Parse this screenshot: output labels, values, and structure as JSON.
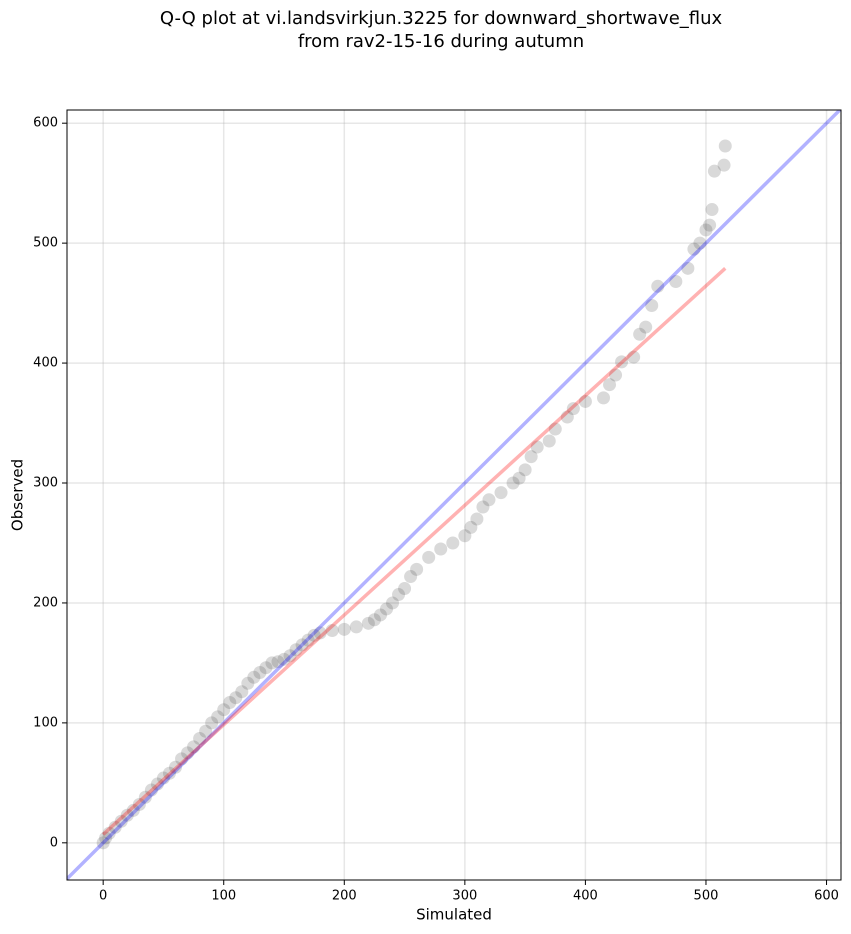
{
  "chart_data": {
    "type": "scatter",
    "title": [
      "Q-Q plot at vi.landsvirkjun.3225 for downward_shortwave_flux",
      "from rav2-15-16 during autumn"
    ],
    "x_label": "Simulated",
    "y_label": "Observed",
    "xlim": [
      -30,
      612
    ],
    "ylim": [
      -31,
      611
    ],
    "xticks": [
      0,
      100,
      200,
      300,
      400,
      500,
      600
    ],
    "yticks": [
      0,
      100,
      200,
      300,
      400,
      500,
      600
    ],
    "grid": true,
    "series": [
      {
        "color": "#404040",
        "alpha": 0.2,
        "x": [
          0,
          2,
          5,
          10,
          15,
          20,
          25,
          30,
          35,
          40,
          45,
          50,
          55,
          60,
          65,
          70,
          75,
          80,
          85,
          90,
          95,
          100,
          105,
          110,
          115,
          120,
          125,
          130,
          135,
          140,
          145,
          150,
          155,
          160,
          165,
          170,
          175,
          180,
          190,
          200,
          210,
          220,
          225,
          230,
          235,
          240,
          245,
          250,
          255,
          260,
          270,
          280,
          290,
          300,
          305,
          310,
          315,
          320,
          330,
          340,
          345,
          350,
          355,
          360,
          370,
          375,
          385,
          390,
          400,
          415,
          420,
          425,
          430,
          440,
          445,
          450,
          455,
          460,
          475,
          485,
          490,
          495,
          500,
          503,
          505,
          507,
          515,
          516
        ],
        "values": [
          0,
          4,
          8,
          13,
          18,
          23,
          27,
          32,
          38,
          44,
          49,
          54,
          58,
          63,
          70,
          75,
          80,
          87,
          93,
          100,
          105,
          111,
          117,
          121,
          126,
          133,
          138,
          142,
          146,
          150,
          151,
          153,
          156,
          161,
          165,
          169,
          173,
          175,
          177,
          178,
          180,
          183,
          186,
          190,
          195,
          200,
          207,
          212,
          222,
          228,
          238,
          245,
          250,
          256,
          263,
          270,
          280,
          286,
          292,
          300,
          304,
          311,
          322,
          330,
          335,
          345,
          355,
          362,
          368,
          371,
          382,
          390,
          401,
          405,
          424,
          430,
          448,
          464,
          468,
          479,
          495,
          500,
          511,
          515,
          528,
          560,
          565,
          581
        ]
      }
    ],
    "lines": [
      {
        "color": "#0000ff",
        "alpha": 0.3,
        "x": [
          -30,
          612
        ],
        "values": [
          -30,
          612
        ]
      },
      {
        "color": "#ff0000",
        "alpha": 0.3,
        "x": [
          0,
          516
        ],
        "values": [
          7,
          479
        ]
      }
    ]
  }
}
